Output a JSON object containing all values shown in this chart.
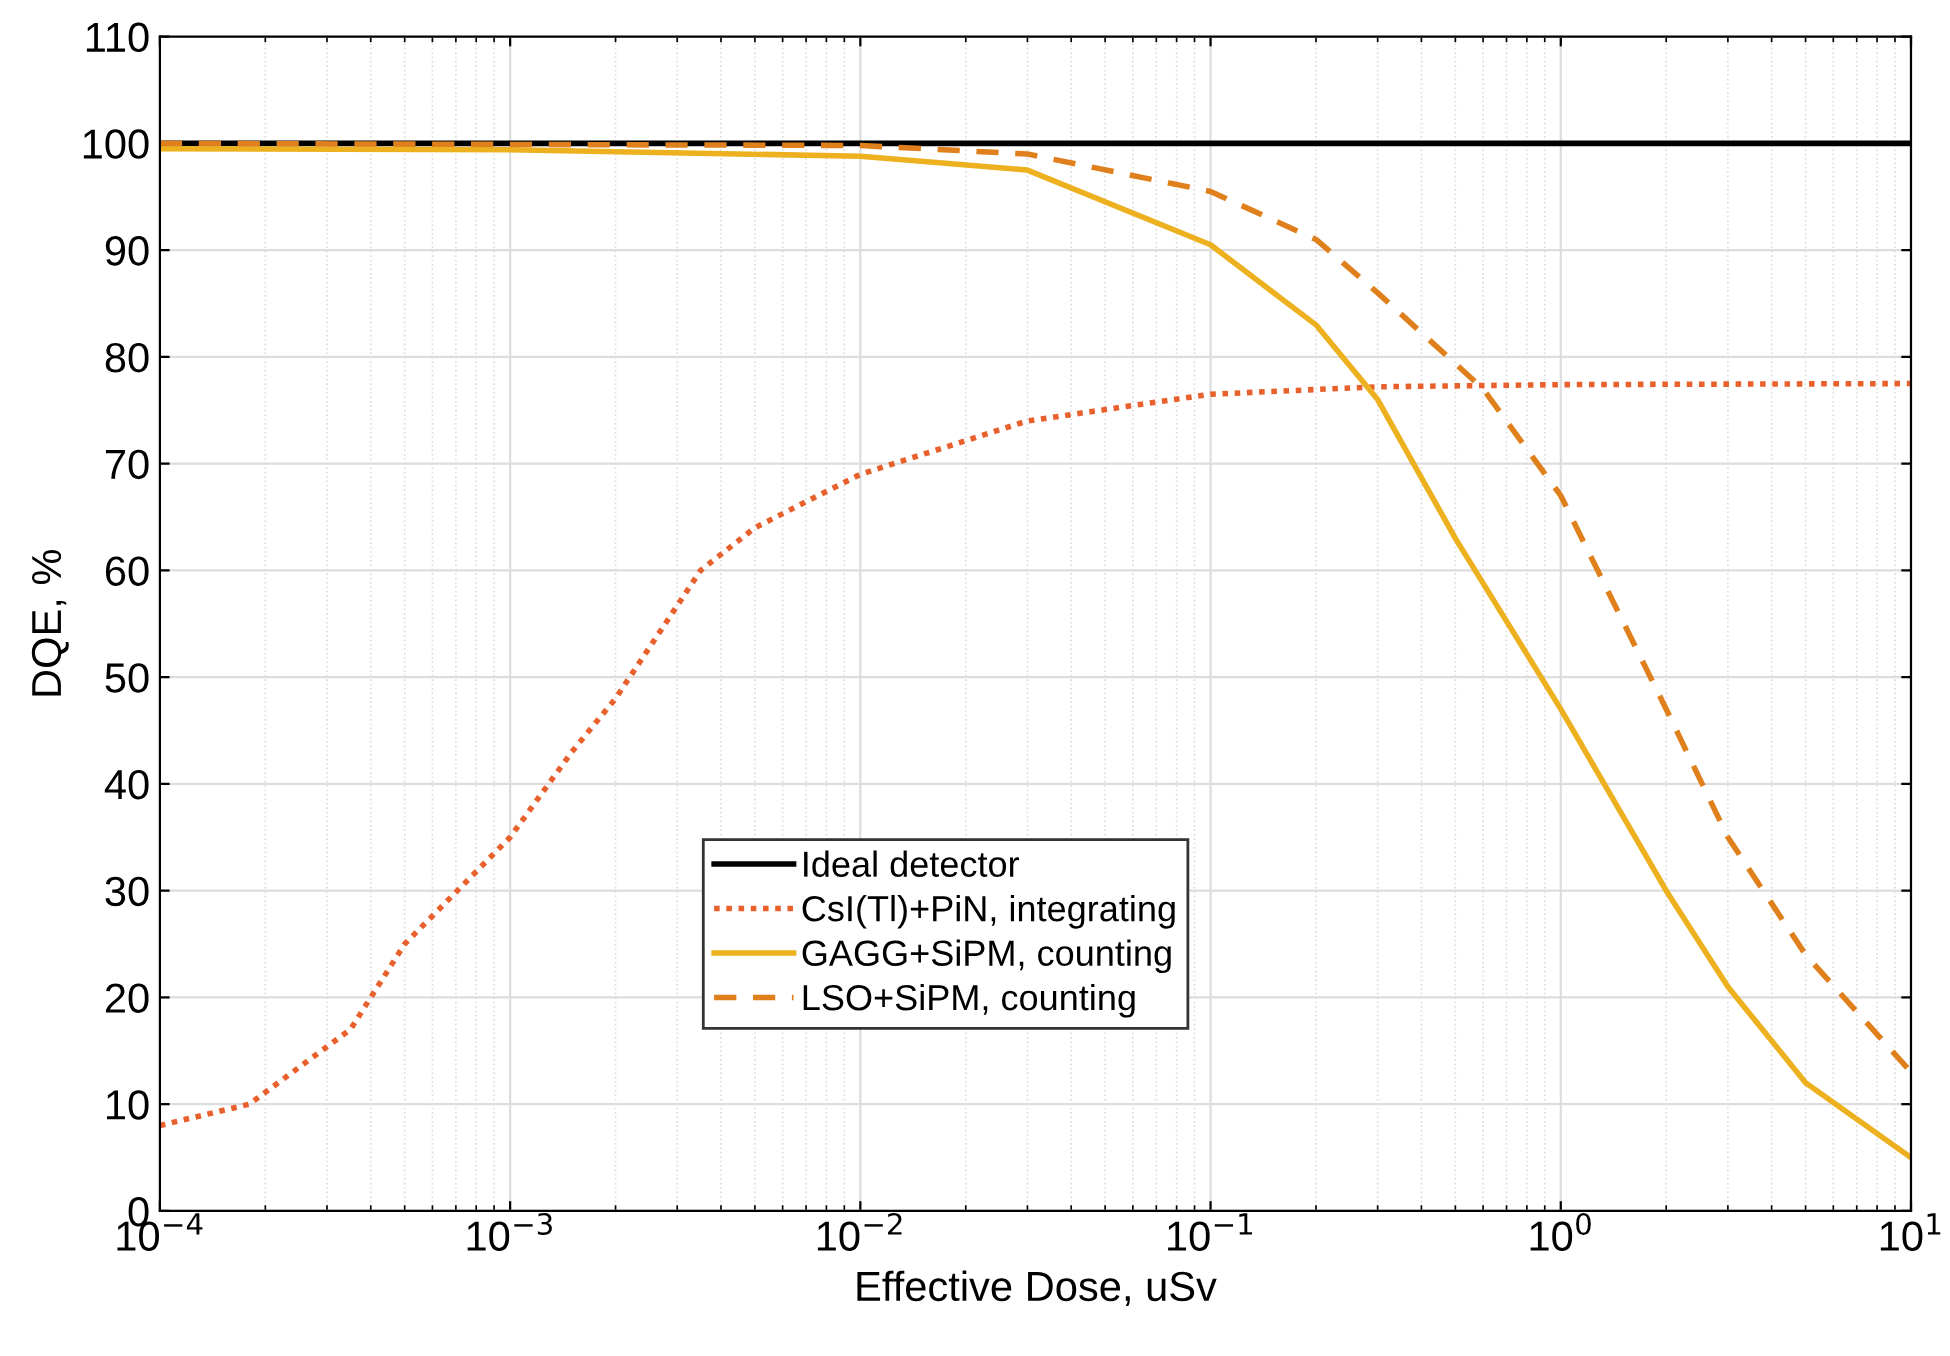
{
  "chart_data": {
    "type": "line",
    "xlabel": "Effective Dose, uSv",
    "ylabel": "DQE, %",
    "log": "x",
    "grid": true,
    "legend": "bottom left",
    "marker": "none",
    "xlim": [
      0.0001,
      10
    ],
    "xticks": [
      {
        "value": 0.0001,
        "label": "10$^{−4}$"
      },
      {
        "value": 0.001,
        "label": "10$^{−3}$"
      },
      {
        "value": 0.01,
        "label": "10$^{−2}$"
      },
      {
        "value": 0.1,
        "label": "10$^{−1}$"
      },
      {
        "value": 1,
        "label": "10$^{0}$"
      },
      {
        "value": 10,
        "label": "10$^{1}$"
      }
    ],
    "ylim": [
      0,
      110
    ],
    "yticks": [
      0,
      10,
      20,
      30,
      40,
      50,
      60,
      70,
      80,
      90,
      100,
      110
    ],
    "series": [
      {
        "name": "Ideal detector",
        "color": "#000000",
        "line_style": "solid",
        "x": [
          0.0001,
          10
        ],
        "values": [
          100,
          100
        ]
      },
      {
        "name": "CsI(Tl)+PiN, integrating",
        "color": "#e8602c",
        "line_style": "dotted",
        "x": [
          0.0001,
          0.00018,
          0.00035,
          0.0005,
          0.001,
          0.0015,
          0.002,
          0.0035,
          0.005,
          0.01,
          0.03,
          0.1,
          0.3,
          1,
          10
        ],
        "values": [
          8,
          10,
          17,
          25,
          35,
          43,
          48,
          60,
          64,
          69,
          74,
          76.5,
          77.2,
          77.4,
          77.5
        ]
      },
      {
        "name": "GAGG+SiPM, counting",
        "color": "#edb120",
        "line_style": "solid",
        "x": [
          0.0001,
          0.001,
          0.01,
          0.03,
          0.1,
          0.2,
          0.3,
          0.5,
          1,
          2,
          3,
          5,
          10
        ],
        "values": [
          99.5,
          99.4,
          98.8,
          97.5,
          90.5,
          83,
          76,
          63,
          47,
          30,
          21,
          12,
          5
        ]
      },
      {
        "name": "LSO+SiPM, counting",
        "color": "#e0801c",
        "line_style": "dashed",
        "x": [
          0.0001,
          0.01,
          0.03,
          0.1,
          0.2,
          0.3,
          0.6,
          1,
          2,
          3,
          5,
          10
        ],
        "values": [
          100,
          99.8,
          99,
          95.5,
          91,
          86,
          77,
          67,
          47,
          35,
          24,
          13
        ]
      }
    ]
  }
}
